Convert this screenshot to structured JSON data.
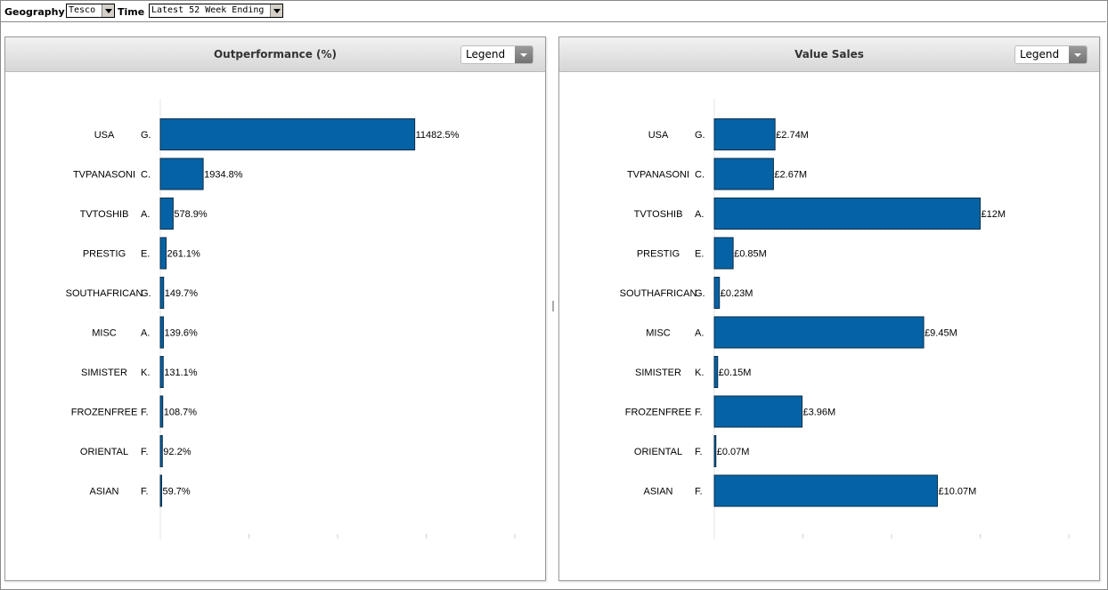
{
  "toolbar": {
    "geography_label": "Geography",
    "geography_value": "Tesco",
    "time_label": "Time",
    "time_value": "Latest 52 Week Ending"
  },
  "panels": [
    {
      "title": "Outperformance (%)",
      "legend_label": "Legend"
    },
    {
      "title": "Value Sales",
      "legend_label": "Legend"
    }
  ],
  "colors": {
    "bar": "#0563a5",
    "bar_stroke": "#0a2e4a"
  },
  "chart_data": [
    {
      "type": "bar",
      "orientation": "horizontal",
      "title": "Outperformance (%)",
      "categories": [
        "USA",
        "TVPANASONI",
        "TVTOSHIB",
        "PRESTIG",
        "SOUTHAFRICAN",
        "MISC",
        "SIMISTER",
        "FROZENFREE",
        "ORIENTAL",
        "ASIAN"
      ],
      "category_codes": [
        "G.",
        "C.",
        "A.",
        "E.",
        "G.",
        "A.",
        "K.",
        "F.",
        "F.",
        "F."
      ],
      "values": [
        11482.5,
        1934.8,
        578.9,
        261.1,
        149.7,
        139.6,
        131.1,
        108.7,
        92.2,
        59.7
      ],
      "labels": [
        "11482.5%",
        "1934.8%",
        "578.9%",
        "261.1%",
        "149.7%",
        "139.6%",
        "131.1%",
        "108.7%",
        "92.2%",
        "59.7%"
      ],
      "xlim": [
        0,
        16000
      ]
    },
    {
      "type": "bar",
      "orientation": "horizontal",
      "title": "Value Sales",
      "categories": [
        "USA",
        "TVPANASONI",
        "TVTOSHIB",
        "PRESTIG",
        "SOUTHAFRICAN",
        "MISC",
        "SIMISTER",
        "FROZENFREE",
        "ORIENTAL",
        "ASIAN"
      ],
      "category_codes": [
        "G.",
        "C.",
        "A.",
        "E.",
        "G.",
        "A.",
        "K.",
        "F.",
        "F.",
        "F."
      ],
      "values": [
        2.74,
        2.67,
        12,
        0.85,
        0.23,
        9.45,
        0.15,
        3.96,
        0.07,
        10.07
      ],
      "labels": [
        "£2.74M",
        "£2.67M",
        "£12M",
        "£0.85M",
        "£0.23M",
        "£9.45M",
        "£0.15M",
        "£3.96M",
        "£0.07M",
        "£10.07M"
      ],
      "xlim": [
        0,
        16
      ]
    }
  ]
}
